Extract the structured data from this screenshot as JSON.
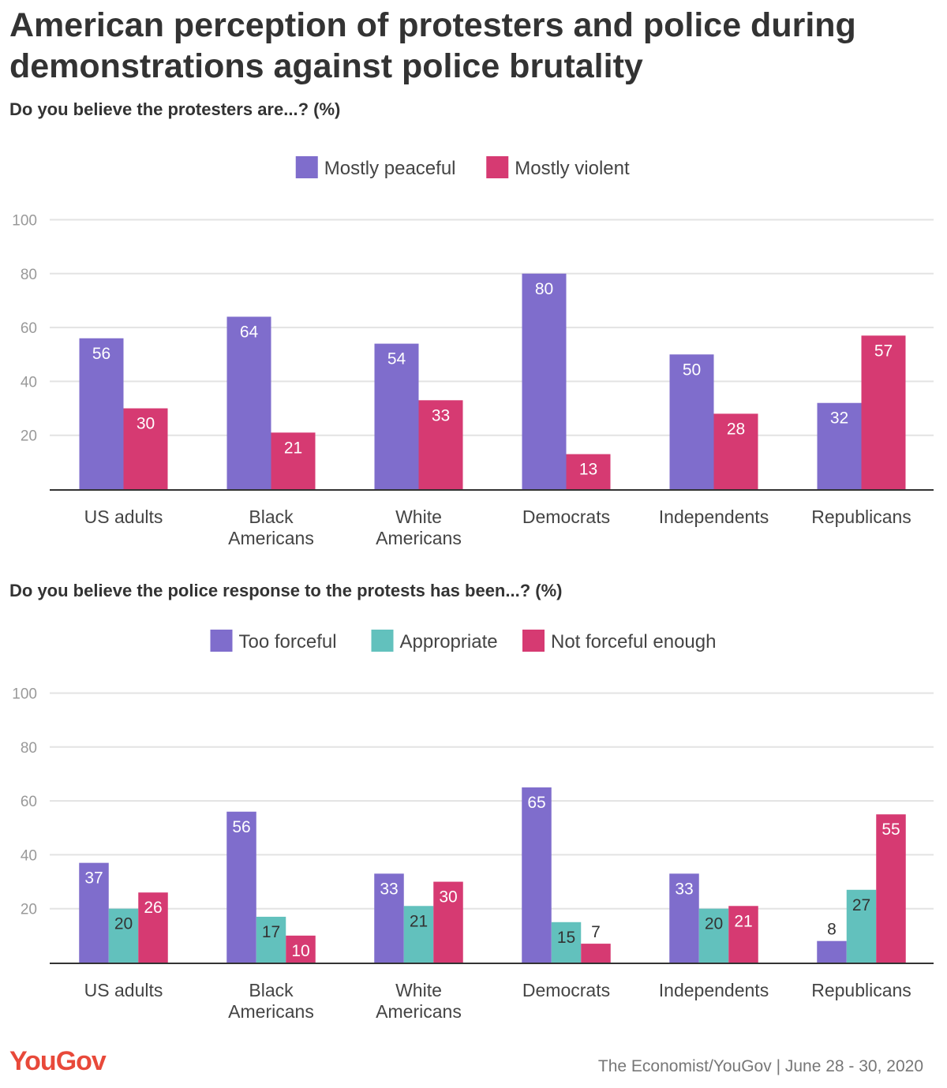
{
  "title": "American perception of protesters and police during demonstrations against police brutality",
  "colors": {
    "purple": "#7f6dcc",
    "pink": "#d63a72",
    "teal": "#62c1bd",
    "grid": "#e3e3e3",
    "axis": "#333333"
  },
  "chart_data": [
    {
      "type": "bar",
      "title": "Do you believe the protesters are...? (%)",
      "categories": [
        [
          "US adults"
        ],
        [
          "Black",
          "Americans"
        ],
        [
          "White",
          "Americans"
        ],
        [
          "Democrats"
        ],
        [
          "Independents"
        ],
        [
          "Republicans"
        ]
      ],
      "ylim": [
        0,
        100
      ],
      "yticks": [
        20,
        40,
        60,
        80,
        100
      ],
      "grid": true,
      "legend_position": "top-center",
      "series": [
        {
          "name": "Mostly peaceful",
          "color": "#7f6dcc",
          "values": [
            56,
            64,
            54,
            80,
            50,
            32
          ]
        },
        {
          "name": "Mostly violent",
          "color": "#d63a72",
          "values": [
            30,
            21,
            33,
            13,
            28,
            57
          ]
        }
      ]
    },
    {
      "type": "bar",
      "title": "Do you believe the police response to the protests has been...? (%)",
      "categories": [
        [
          "US adults"
        ],
        [
          "Black",
          "Americans"
        ],
        [
          "White",
          "Americans"
        ],
        [
          "Democrats"
        ],
        [
          "Independents"
        ],
        [
          "Republicans"
        ]
      ],
      "ylim": [
        0,
        100
      ],
      "yticks": [
        20,
        40,
        60,
        80,
        100
      ],
      "grid": true,
      "legend_position": "top-center",
      "series": [
        {
          "name": "Too forceful",
          "color": "#7f6dcc",
          "values": [
            37,
            56,
            33,
            65,
            33,
            8
          ]
        },
        {
          "name": "Appropriate",
          "color": "#62c1bd",
          "values": [
            20,
            17,
            21,
            15,
            20,
            27
          ]
        },
        {
          "name": "Not forceful enough",
          "color": "#d63a72",
          "values": [
            26,
            10,
            30,
            7,
            21,
            55
          ]
        }
      ]
    }
  ],
  "footer": {
    "logo": "YouGov",
    "source": "The Economist/YouGov | June 28 - 30, 2020"
  }
}
